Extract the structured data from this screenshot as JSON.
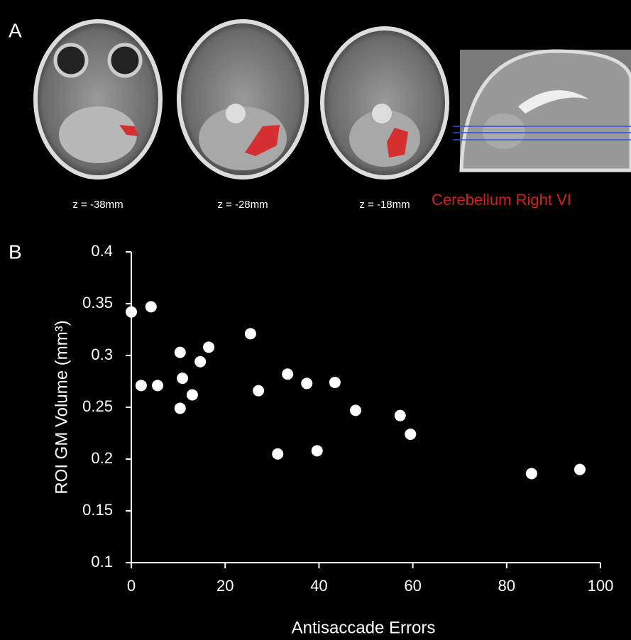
{
  "panel_a": {
    "label": "A",
    "captions": [
      "z = -38mm",
      "z = -28mm",
      "z = -18mm"
    ],
    "roi_label": "Cerebellum Right VI"
  },
  "chart_data": {
    "type": "scatter",
    "panel_label": "B",
    "x_label": "Antisaccade Errors",
    "y_label": "ROI GM Volume (mm³)",
    "color": "#ffffff",
    "x": [
      0,
      4.2,
      2.1,
      5.6,
      10.4,
      10.9,
      10.4,
      13.0,
      14.7,
      16.5,
      25.4,
      27.1,
      31.2,
      33.3,
      37.4,
      39.6,
      43.4,
      47.8,
      57.3,
      59.5,
      85.3,
      95.6
    ],
    "values": [
      0.342,
      0.347,
      0.271,
      0.271,
      0.303,
      0.278,
      0.249,
      0.262,
      0.294,
      0.308,
      0.321,
      0.266,
      0.205,
      0.282,
      0.273,
      0.208,
      0.274,
      0.247,
      0.242,
      0.224,
      0.186,
      0.19
    ],
    "xlim": [
      0,
      100
    ],
    "xticks": [
      0,
      20,
      40,
      60,
      80,
      100
    ],
    "ylim": [
      0.1,
      0.4
    ],
    "yticks": [
      0.1,
      0.15,
      0.2,
      0.25,
      0.3,
      0.35,
      0.4
    ]
  }
}
